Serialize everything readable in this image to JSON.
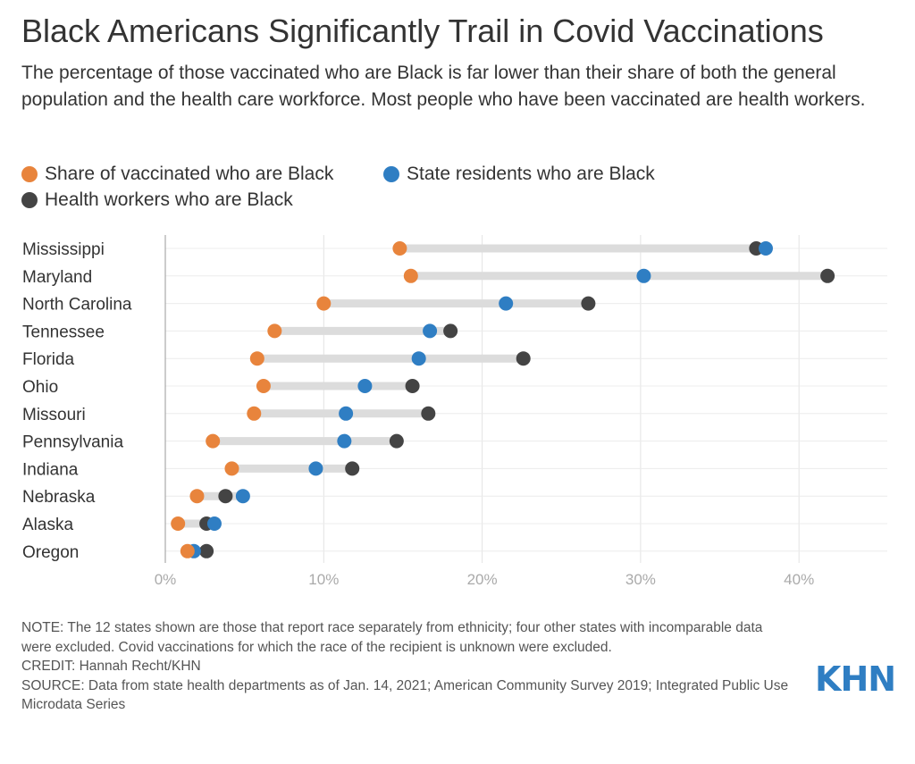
{
  "title": "Black Americans Significantly Trail in Covid Vaccinations",
  "subtitle": "The percentage of those vaccinated who are Black is far lower than their share of both the general population and the health care workforce. Most people who have been vaccinated are health workers.",
  "legend": [
    {
      "label": "Share of vaccinated who are Black",
      "color": "#e8843c"
    },
    {
      "label": "State residents who are Black",
      "color": "#2f7ec3"
    },
    {
      "label": "Health workers who are Black",
      "color": "#444444"
    }
  ],
  "chart_data": {
    "type": "scatter",
    "categories": [
      "Mississippi",
      "Maryland",
      "North Carolina",
      "Tennessee",
      "Florida",
      "Ohio",
      "Missouri",
      "Pennsylvania",
      "Indiana",
      "Nebraska",
      "Alaska",
      "Oregon"
    ],
    "series": [
      {
        "name": "Share of vaccinated who are Black",
        "color": "#e8843c",
        "values": [
          14.8,
          15.5,
          10.0,
          6.9,
          5.8,
          6.2,
          5.6,
          3.0,
          4.2,
          2.0,
          0.8,
          1.4
        ]
      },
      {
        "name": "State residents who are Black",
        "color": "#2f7ec3",
        "values": [
          37.9,
          30.2,
          21.5,
          16.7,
          16.0,
          12.6,
          11.4,
          11.3,
          9.5,
          4.9,
          3.1,
          1.8
        ]
      },
      {
        "name": "Health workers who are Black",
        "color": "#444444",
        "values": [
          37.3,
          41.8,
          26.7,
          18.0,
          22.6,
          15.6,
          16.6,
          14.6,
          11.8,
          3.8,
          2.6,
          2.6
        ]
      }
    ],
    "xlim": [
      0,
      45
    ],
    "x_ticks": [
      0,
      10,
      20,
      30,
      40
    ],
    "x_tick_labels": [
      "0%",
      "10%",
      "20%",
      "30%",
      "40%"
    ],
    "grid": true,
    "legend_position": "top-left"
  },
  "notes": [
    "NOTE: The 12 states shown are those that report race separately from ethnicity; four other states with incomparable data were excluded. Covid vaccinations for which the race of the recipient is unknown were excluded.",
    "CREDIT: Hannah Recht/KHN",
    "SOURCE: Data from state health departments as of Jan. 14, 2021; American Community Survey 2019; Integrated Public Use Microdata Series"
  ],
  "logo": "KHN"
}
